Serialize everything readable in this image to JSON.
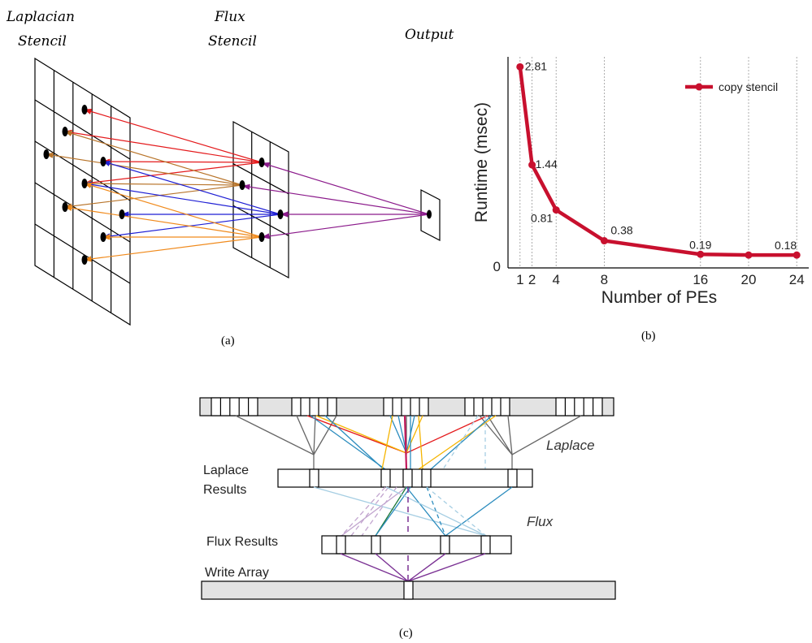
{
  "panel_a": {
    "caption": "(a)",
    "laplacian_label_line1": "Laplacian",
    "laplacian_label_line2": "Stencil",
    "flux_label_line1": "Flux",
    "flux_label_line2": "Stencil",
    "output_label": "Output",
    "colors": {
      "red": "#e41a1c",
      "brown": "#b8742a",
      "blue": "#1f1fd4",
      "orange": "#f08a1c",
      "purple": "#8b1a8b"
    }
  },
  "panel_b": {
    "caption": "(b)",
    "chart_data": {
      "type": "line",
      "xlabel": "Number of PEs",
      "ylabel": "Runtime (msec)",
      "x_ticks": [
        "1",
        "2",
        "4",
        "8",
        "16",
        "20",
        "24"
      ],
      "y_ticks": [
        "0"
      ],
      "series": [
        {
          "name": "copy stencil",
          "color": "#c8102e",
          "x": [
            1,
            2,
            4,
            8,
            16,
            20,
            24
          ],
          "y": [
            2.81,
            1.44,
            0.81,
            0.38,
            0.19,
            0.18,
            0.18
          ]
        }
      ],
      "data_labels": [
        {
          "x": 1,
          "text": "2.81"
        },
        {
          "x": 2,
          "text": "1.44"
        },
        {
          "x": 4,
          "text": "0.81"
        },
        {
          "x": 8,
          "text": "0.38"
        },
        {
          "x": 16,
          "text": "0.19"
        },
        {
          "x": 24,
          "text": "0.18"
        }
      ],
      "xlim": [
        0,
        25
      ],
      "ylim": [
        0,
        2.95
      ],
      "grid": "vertical dotted lines at ticks",
      "legend_position": "top-right"
    }
  },
  "panel_c": {
    "caption": "(c)",
    "laplace_label": "Laplace",
    "laplace_results_line1": "Laplace",
    "laplace_results_line2": "Results",
    "flux_label": "Flux",
    "flux_results_label": "Flux Results",
    "write_array_label": "Write Array",
    "colors": {
      "gray": "#666666",
      "red": "#e41a1c",
      "orange": "#f5b400",
      "blue": "#2b8cbe",
      "lightblue": "#a6cee3",
      "purple": "#7b3294",
      "lightpurple": "#c2a5cf",
      "green": "#1b7837",
      "dark": "#333333"
    }
  }
}
